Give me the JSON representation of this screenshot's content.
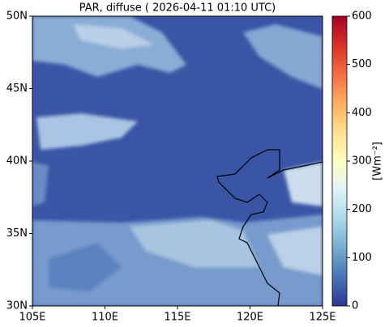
{
  "title": "PAR, diffuse ( 2026-04-11 01:10 UTC)",
  "map": {
    "xlim": [
      105,
      125
    ],
    "ylim": [
      30,
      50
    ],
    "xticks": [
      {
        "value": 105,
        "label": "105E"
      },
      {
        "value": 110,
        "label": "110E"
      },
      {
        "value": 115,
        "label": "115E"
      },
      {
        "value": 120,
        "label": "120E"
      },
      {
        "value": 125,
        "label": "125E"
      }
    ],
    "yticks": [
      {
        "value": 30,
        "label": "30N"
      },
      {
        "value": 35,
        "label": "35N"
      },
      {
        "value": 40,
        "label": "40N"
      },
      {
        "value": 45,
        "label": "45N"
      },
      {
        "value": 50,
        "label": "50N"
      }
    ]
  },
  "colorbar": {
    "label": "[Wm⁻²]",
    "lim": [
      0,
      600
    ],
    "ticks": [
      0,
      100,
      200,
      300,
      400,
      500,
      600
    ]
  }
}
